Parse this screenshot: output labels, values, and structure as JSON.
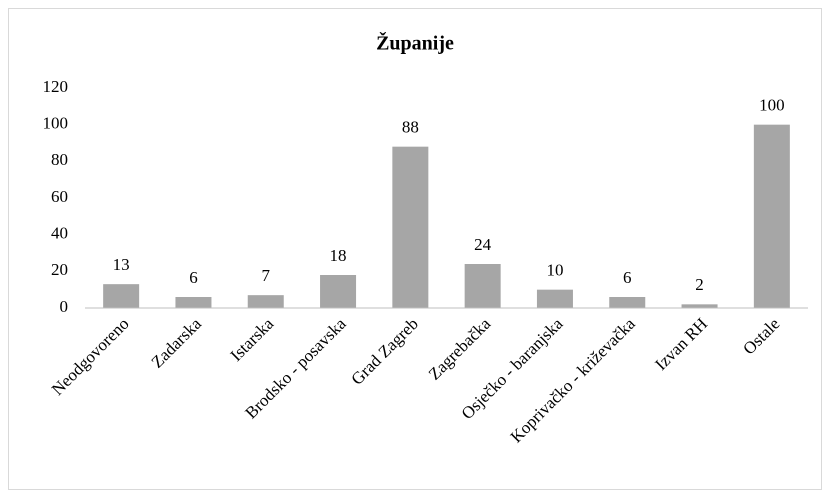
{
  "chart_data": {
    "type": "bar",
    "title": "Županije",
    "categories": [
      "Neodgovoreno",
      "Zadarska",
      "Istarska",
      "Brodsko - posavska",
      "Grad Zagreb",
      "Zagrebačka",
      "Osječko - baranjska",
      "Koprivačko - križevačka",
      "Izvan RH",
      "Ostale"
    ],
    "values": [
      13,
      6,
      7,
      18,
      88,
      24,
      10,
      6,
      2,
      100
    ],
    "color": "#a6a6a6",
    "ylim": [
      0,
      120
    ],
    "yticks": [
      0,
      20,
      40,
      60,
      80,
      100,
      120
    ],
    "grid": false
  }
}
